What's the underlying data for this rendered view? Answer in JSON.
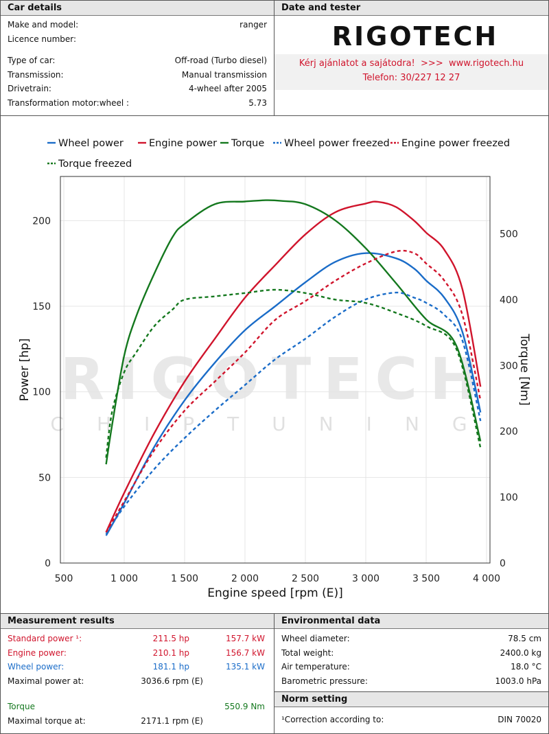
{
  "car": {
    "header": "Car details",
    "rows": [
      {
        "label": "Make and model:",
        "value": "ranger"
      },
      {
        "label": "Licence number:",
        "value": ""
      },
      {
        "label": "Type of car:",
        "value": "Off-road (Turbo diesel)"
      },
      {
        "label": "Transmission:",
        "value": "Manual transmission"
      },
      {
        "label": "Drivetrain:",
        "value": "4-wheel after 2005"
      },
      {
        "label": "Transformation motor:wheel :",
        "value": "5.73"
      }
    ]
  },
  "tester": {
    "header": "Date and tester",
    "logo_text": "RIGOTECH",
    "promo_line": "Kérj ajánlatot a sajátodra!  >>>  www.rigotech.hu",
    "phone_line": "Telefon: 30/227 12 27"
  },
  "watermark": {
    "main": "RIGOTECH",
    "sub": "CHIPTUNING"
  },
  "colors": {
    "red": "#d0142c",
    "blue": "#1a6cc8",
    "green": "#14781e"
  },
  "chart_data": {
    "type": "line",
    "xlabel": "Engine speed [rpm (E)]",
    "ylabel": "Power [hp]",
    "y2label": "Torque [Nm]",
    "xlim": [
      500,
      4000
    ],
    "ylim": [
      0,
      225
    ],
    "y2lim": [
      0,
      585
    ],
    "x_ticks": [
      "500",
      "1 000",
      "1 500",
      "2 000",
      "2 500",
      "3 000",
      "3 500",
      "4 000"
    ],
    "y_ticks": [
      "0",
      "50",
      "100",
      "150",
      "200"
    ],
    "y2_ticks": [
      "0",
      "100",
      "200",
      "300",
      "400",
      "500"
    ],
    "legend": [
      "Wheel power",
      "Engine power",
      "Torque",
      "Wheel power freezed",
      "Engine power freezed",
      "Torque freezed"
    ],
    "legend_placement": "top",
    "grid": true,
    "series": [
      {
        "name": "Wheel power",
        "axis": "left",
        "color": "#1a6cc8",
        "dash": false,
        "x": [
          850,
          1000,
          1250,
          1500,
          1750,
          2000,
          2250,
          2500,
          2750,
          3000,
          3250,
          3400,
          3500,
          3650,
          3800,
          3950
        ],
        "y": [
          16,
          35,
          68,
          95,
          117,
          136,
          150,
          164,
          176,
          181,
          178,
          172,
          165,
          155,
          135,
          88
        ]
      },
      {
        "name": "Engine power",
        "axis": "left",
        "color": "#d0142c",
        "dash": false,
        "x": [
          850,
          1000,
          1250,
          1500,
          1750,
          2000,
          2250,
          2500,
          2750,
          3000,
          3100,
          3250,
          3400,
          3500,
          3650,
          3800,
          3950
        ],
        "y": [
          18,
          41,
          76,
          106,
          131,
          155,
          174,
          192,
          205,
          210,
          211,
          208,
          200,
          193,
          183,
          160,
          103
        ]
      },
      {
        "name": "Torque",
        "axis": "right",
        "color": "#14781e",
        "dash": false,
        "x": [
          850,
          900,
          1000,
          1100,
          1250,
          1400,
          1500,
          1750,
          2000,
          2171,
          2300,
          2500,
          2750,
          3000,
          3250,
          3500,
          3750,
          3950
        ],
        "y": [
          150,
          210,
          315,
          375,
          440,
          495,
          515,
          545,
          549,
          551,
          550,
          545,
          520,
          478,
          425,
          370,
          330,
          185
        ]
      },
      {
        "name": "Wheel power freezed",
        "axis": "left",
        "color": "#1a6cc8",
        "dash": true,
        "x": [
          850,
          1000,
          1250,
          1500,
          1750,
          2000,
          2250,
          2500,
          2750,
          3000,
          3250,
          3400,
          3500,
          3650,
          3800,
          3950
        ],
        "y": [
          17,
          33,
          55,
          73,
          89,
          104,
          119,
          131,
          144,
          154,
          158,
          155,
          152,
          145,
          130,
          83
        ]
      },
      {
        "name": "Engine power freezed",
        "axis": "left",
        "color": "#d0142c",
        "dash": true,
        "x": [
          850,
          1000,
          1250,
          1500,
          1750,
          2000,
          2250,
          2500,
          2750,
          3000,
          3250,
          3400,
          3500,
          3650,
          3800,
          3950
        ],
        "y": [
          18,
          36,
          66,
          89,
          106,
          123,
          142,
          153,
          165,
          175,
          182,
          181,
          175,
          165,
          145,
          95
        ]
      },
      {
        "name": "Torque freezed",
        "axis": "right",
        "color": "#14781e",
        "dash": true,
        "x": [
          850,
          900,
          1000,
          1100,
          1250,
          1400,
          1500,
          1750,
          2000,
          2250,
          2500,
          2750,
          3000,
          3250,
          3500,
          3750,
          3950
        ],
        "y": [
          160,
          230,
          290,
          320,
          360,
          385,
          400,
          405,
          410,
          415,
          410,
          400,
          395,
          380,
          360,
          325,
          175
        ]
      }
    ]
  },
  "measurement": {
    "header": "Measurement results",
    "rows": [
      {
        "label": "Standard power ¹:",
        "value": "211.5 hp",
        "kw": "157.7 kW",
        "color": "red"
      },
      {
        "label": "Engine power:",
        "value": "210.1 hp",
        "kw": "156.7 kW",
        "color": "red"
      },
      {
        "label": "Wheel power:",
        "value": "181.1 hp",
        "kw": "135.1 kW",
        "color": "blue"
      },
      {
        "label": "Maximal power at:",
        "value": "3036.6 rpm (E)",
        "kw": "",
        "color": ""
      }
    ],
    "torque_label": "Torque",
    "torque_value": "550.9 Nm",
    "max_torque_label": "Maximal torque at:",
    "max_torque_value": "2171.1 rpm (E)"
  },
  "environment": {
    "header": "Environmental data",
    "rows": [
      {
        "label": "Wheel diameter:",
        "value": "78.5 cm"
      },
      {
        "label": "Total weight:",
        "value": "2400.0 kg"
      },
      {
        "label": "Air temperature:",
        "value": "18.0 °C"
      },
      {
        "label": "Barometric pressure:",
        "value": "1003.0 hPa"
      }
    ]
  },
  "norm": {
    "header": "Norm setting",
    "label": "¹Correction according to:",
    "value": "DIN 70020"
  }
}
